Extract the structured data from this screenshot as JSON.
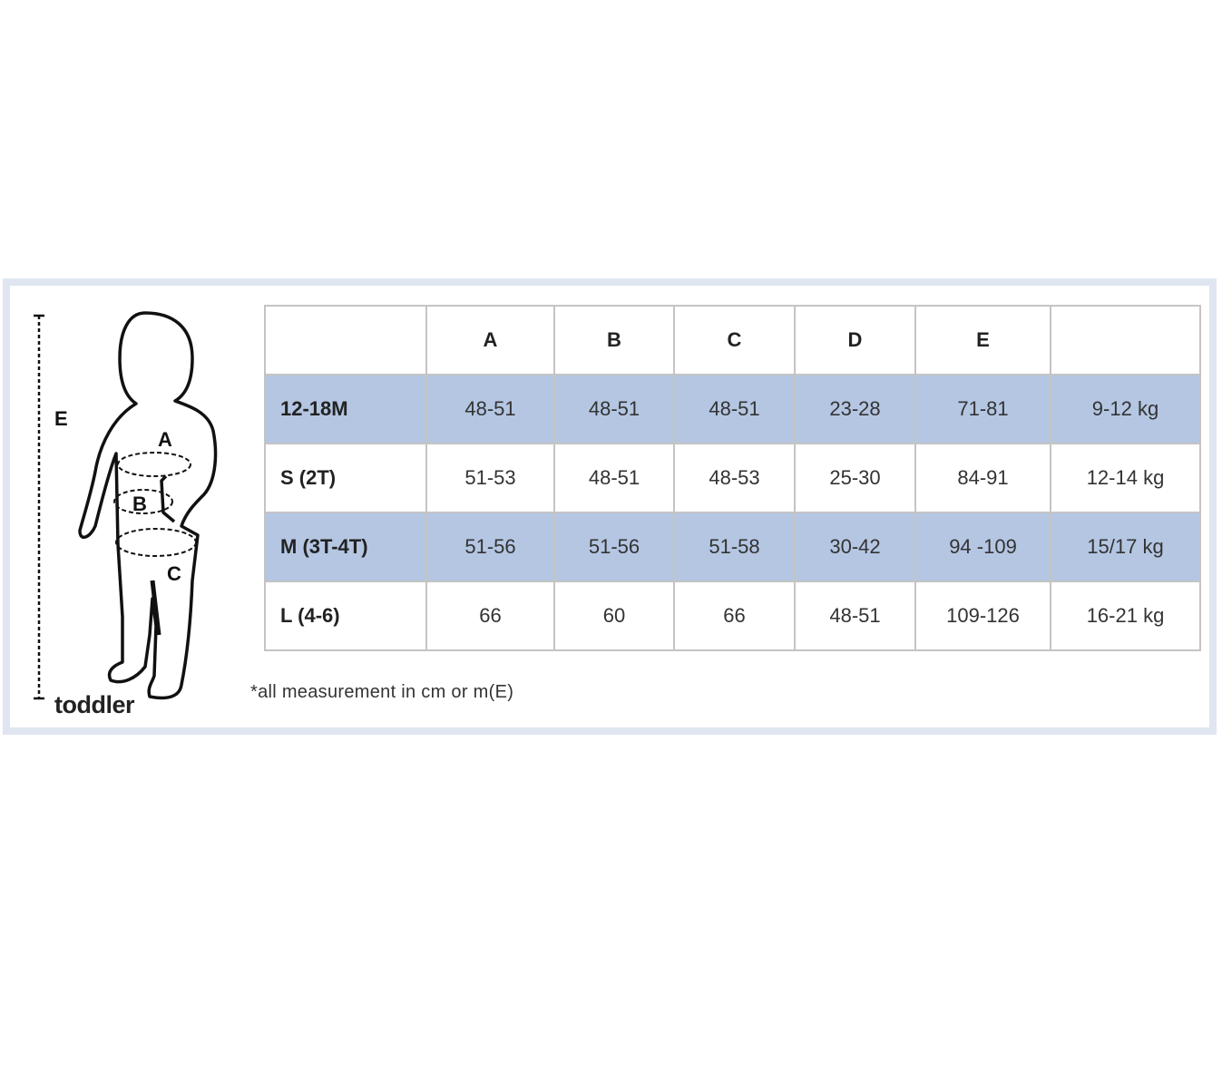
{
  "figure": {
    "label": "toddler",
    "dimension_labels": [
      "A",
      "B",
      "C",
      "E"
    ]
  },
  "table": {
    "headers": [
      "",
      "A",
      "B",
      "C",
      "D",
      "E",
      ""
    ],
    "rows": [
      {
        "size": "12-18M",
        "values": [
          "48-51",
          "48-51",
          "48-51",
          "23-28",
          "71-81",
          "9-12 kg"
        ],
        "highlight": true
      },
      {
        "size": "S (2T)",
        "values": [
          "51-53",
          "48-51",
          "48-53",
          "25-30",
          "84-91",
          "12-14 kg"
        ],
        "highlight": false
      },
      {
        "size": "M (3T-4T)",
        "values": [
          "51-56",
          "51-56",
          "51-58",
          "30-42",
          "94 -109",
          "15/17 kg"
        ],
        "highlight": true
      },
      {
        "size": "L (4-6)",
        "values": [
          "66",
          "60",
          "66",
          "48-51",
          "109-126",
          "16-21 kg"
        ],
        "highlight": false
      }
    ]
  },
  "note": "*all measurement in cm or m(E)",
  "colors": {
    "row_highlight": "#b4c6e2",
    "frame": "#dfe6f1",
    "grid": "#c4c4c4"
  }
}
